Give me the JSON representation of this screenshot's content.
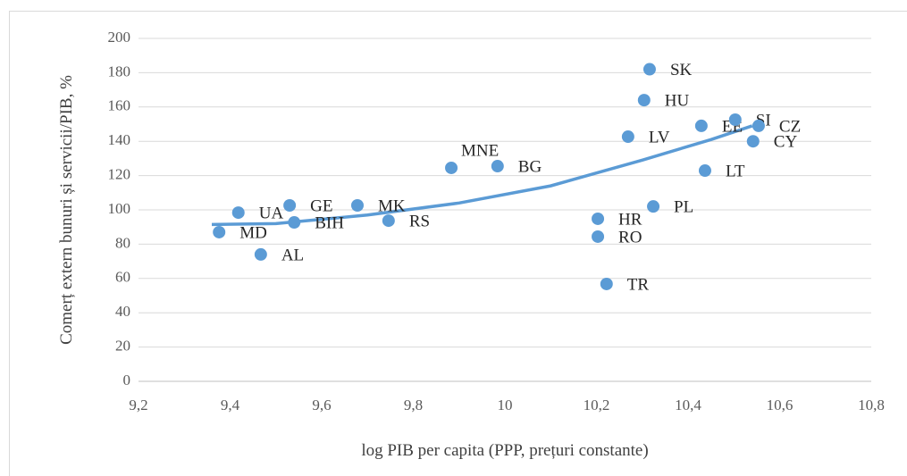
{
  "chart_data": {
    "type": "scatter",
    "xlabel": "log PIB per capita (PPP, prețuri constante)",
    "ylabel": "Comerț extern bunuri și servicii/PIB, %",
    "xlim": [
      9.2,
      10.8
    ],
    "xticks": [
      {
        "value": 9.2,
        "label": "9,2"
      },
      {
        "value": 9.4,
        "label": "9,4"
      },
      {
        "value": 9.6,
        "label": "9,6"
      },
      {
        "value": 9.8,
        "label": "9,8"
      },
      10,
      {
        "value": 10.2,
        "label": "10,2"
      },
      {
        "value": 10.4,
        "label": "10,4"
      },
      {
        "value": 10.6,
        "label": "10,6"
      },
      {
        "value": 10.8,
        "label": "10,8"
      }
    ],
    "ylim": [
      0,
      200
    ],
    "yticks": [
      0,
      20,
      40,
      60,
      80,
      100,
      120,
      140,
      160,
      180,
      200
    ],
    "grid": true,
    "color": "#5b9bd5",
    "labels": [
      "MD",
      "UA",
      "AL",
      "GE",
      "BIH",
      "MK",
      "RS",
      "MNE",
      "BG",
      "HR",
      "RO",
      "TR",
      "LV",
      "PL",
      "HU",
      "SK",
      "EE",
      "LT",
      "SI",
      "CZ",
      "CY"
    ],
    "x": [
      9.376,
      9.418,
      9.467,
      9.53,
      9.54,
      9.678,
      9.746,
      9.883,
      9.984,
      10.203,
      10.203,
      10.222,
      10.269,
      10.324,
      10.304,
      10.316,
      10.429,
      10.437,
      10.503,
      10.554,
      10.542
    ],
    "values": [
      87,
      98.4,
      74,
      102.6,
      92.7,
      102.6,
      93.7,
      124.5,
      125.5,
      94.8,
      84.4,
      56.8,
      142.7,
      102,
      164,
      182,
      149,
      122.9,
      152.6,
      149,
      140
    ],
    "trendline": {
      "x": [
        9.36,
        9.5,
        9.7,
        9.9,
        10.1,
        10.3,
        10.45,
        10.54
      ],
      "values": [
        91.5,
        92,
        97,
        104,
        114,
        129,
        141,
        149
      ]
    }
  }
}
